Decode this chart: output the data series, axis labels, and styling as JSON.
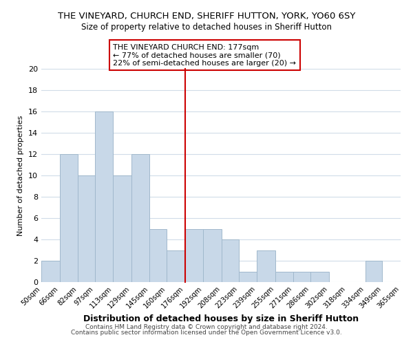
{
  "title": "THE VINEYARD, CHURCH END, SHERIFF HUTTON, YORK, YO60 6SY",
  "subtitle": "Size of property relative to detached houses in Sheriff Hutton",
  "xlabel": "Distribution of detached houses by size in Sheriff Hutton",
  "ylabel": "Number of detached properties",
  "bar_edges": [
    50,
    66,
    82,
    97,
    113,
    129,
    145,
    160,
    176,
    192,
    208,
    223,
    239,
    255,
    271,
    286,
    302,
    318,
    334,
    349,
    365
  ],
  "bar_heights": [
    2,
    12,
    10,
    16,
    10,
    12,
    5,
    3,
    5,
    5,
    4,
    1,
    3,
    1,
    1,
    1,
    0,
    0,
    2,
    0
  ],
  "tick_labels": [
    "50sqm",
    "66sqm",
    "82sqm",
    "97sqm",
    "113sqm",
    "129sqm",
    "145sqm",
    "160sqm",
    "176sqm",
    "192sqm",
    "208sqm",
    "223sqm",
    "239sqm",
    "255sqm",
    "271sqm",
    "286sqm",
    "302sqm",
    "318sqm",
    "334sqm",
    "349sqm",
    "365sqm"
  ],
  "bar_color": "#c8d8e8",
  "bar_edge_color": "#a0b8cc",
  "property_line_x": 176,
  "property_line_color": "#cc0000",
  "annotation_box_text": "THE VINEYARD CHURCH END: 177sqm\n← 77% of detached houses are smaller (70)\n22% of semi-detached houses are larger (20) →",
  "ylim": [
    0,
    20
  ],
  "yticks": [
    0,
    2,
    4,
    6,
    8,
    10,
    12,
    14,
    16,
    18,
    20
  ],
  "footer_line1": "Contains HM Land Registry data © Crown copyright and database right 2024.",
  "footer_line2": "Contains public sector information licensed under the Open Government Licence v3.0.",
  "bg_color": "#ffffff",
  "grid_color": "#d0dce8"
}
